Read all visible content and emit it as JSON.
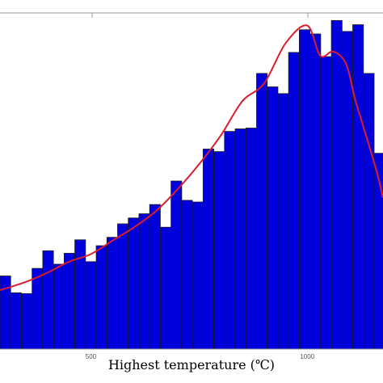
{
  "chart_data": {
    "type": "bar",
    "xlabel": "Highest temperature (℃)",
    "x_ticks": [
      {
        "value": 500,
        "label": "500"
      },
      {
        "value": 1000,
        "label": "1000"
      }
    ],
    "xlim": [
      290,
      1175
    ],
    "ylim": [
      0,
      400
    ],
    "bin_width": 24.7,
    "bin_start": 290,
    "values": [
      87,
      67,
      66,
      96,
      117,
      101,
      114,
      130,
      104,
      123,
      133,
      149,
      156,
      161,
      172,
      145,
      200,
      177,
      175,
      238,
      235,
      259,
      262,
      263,
      328,
      312,
      304,
      353,
      380,
      375,
      348,
      391,
      378,
      386,
      328,
      233
    ],
    "fit_curve": {
      "type": "line",
      "x": [
        290,
        350,
        400,
        450,
        500,
        550,
        600,
        650,
        700,
        750,
        800,
        850,
        900,
        950,
        1000,
        1030,
        1060,
        1090,
        1110,
        1130,
        1160,
        1175
      ],
      "y": [
        70,
        80,
        91,
        104,
        113,
        129,
        145,
        164,
        190,
        220,
        254,
        295,
        316,
        364,
        385,
        349,
        354,
        339,
        298,
        264,
        212,
        180
      ]
    },
    "colors": {
      "bar": "#0000dd",
      "bar_edge": "#1c1c1c",
      "curve": "#dd1b2e",
      "axis": "#999999"
    },
    "grid": false
  }
}
